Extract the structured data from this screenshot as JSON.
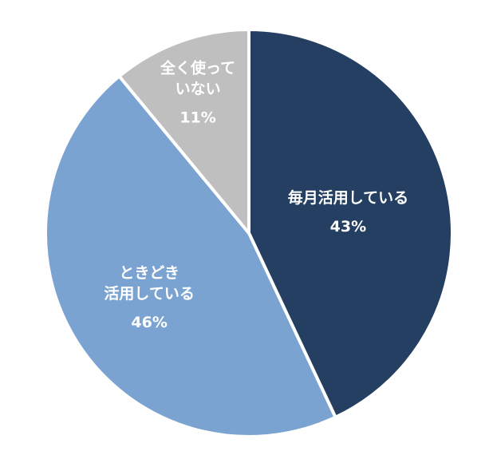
{
  "chart_data": {
    "type": "pie",
    "categories": [
      "毎月活用している",
      "ときどき\n活用している",
      "全く使って\nいない"
    ],
    "values": [
      43,
      46,
      11
    ],
    "value_labels": [
      "43%",
      "46%",
      "11%"
    ],
    "colors": [
      "#243f61",
      "#7ba3d1",
      "#bfbfbf"
    ]
  }
}
